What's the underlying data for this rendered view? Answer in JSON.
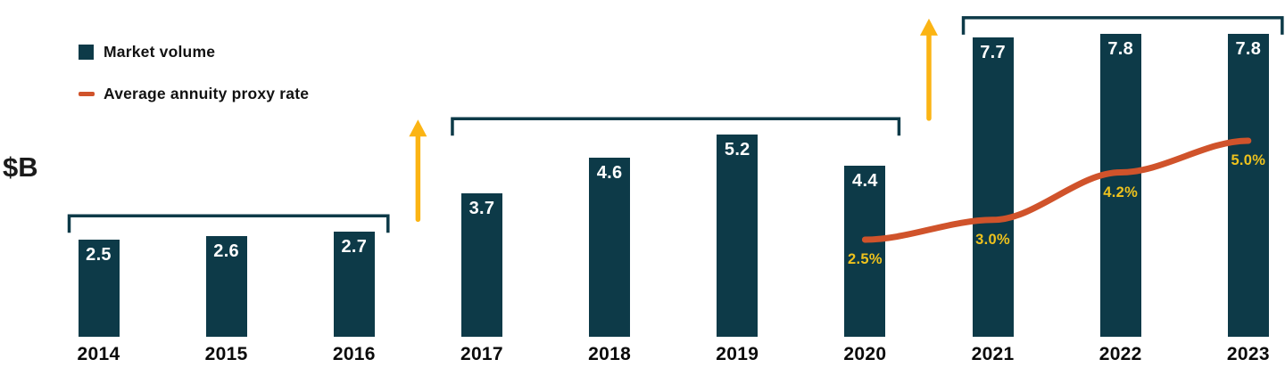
{
  "axis_unit": "$B",
  "colors": {
    "bar": "#0d3a48",
    "bracket": "#0d3a48",
    "rate_line": "#d0532b",
    "arrow": "#fbb414",
    "rate_label_text": "#eec21d",
    "bar_value_text": "#ffffff",
    "text": "#121212"
  },
  "legend": {
    "market_volume_label": "Market volume",
    "rate_label": "Average annuity proxy rate"
  },
  "chart_data": {
    "type": "bar",
    "title": "",
    "xlabel": "",
    "ylabel": "$B",
    "categories": [
      "2014",
      "2015",
      "2016",
      "2017",
      "2018",
      "2019",
      "2020",
      "2021",
      "2022",
      "2023"
    ],
    "series": [
      {
        "name": "Market volume",
        "type": "bar",
        "unit": "$B",
        "values": [
          2.5,
          2.6,
          2.7,
          3.7,
          4.6,
          5.2,
          4.4,
          7.7,
          7.8,
          7.8
        ],
        "value_labels": [
          "2.5",
          "2.6",
          "2.7",
          "3.7",
          "4.6",
          "5.2",
          "4.4",
          "7.7",
          "7.8",
          "7.8"
        ]
      },
      {
        "name": "Average annuity proxy rate",
        "type": "line",
        "unit": "%",
        "values": [
          null,
          null,
          null,
          null,
          null,
          null,
          2.5,
          3.0,
          4.2,
          5.0
        ],
        "value_labels": [
          null,
          null,
          null,
          null,
          null,
          null,
          "2.5%",
          "3.0%",
          "4.2%",
          "5.0%"
        ]
      }
    ],
    "annotations": {
      "bracket_groups": [
        {
          "from": 0,
          "to": 2
        },
        {
          "from": 3,
          "to": 6
        },
        {
          "from": 7,
          "to": 9
        }
      ],
      "up_arrows_between_groups": [
        {
          "after_group": 0
        },
        {
          "after_group": 1
        }
      ]
    },
    "layout_hints": {
      "legend_position": "top-left",
      "grid": false,
      "axes_shown": false,
      "bar_value_placement": "inside-top",
      "rate_label_placement": "below-line-point"
    }
  }
}
